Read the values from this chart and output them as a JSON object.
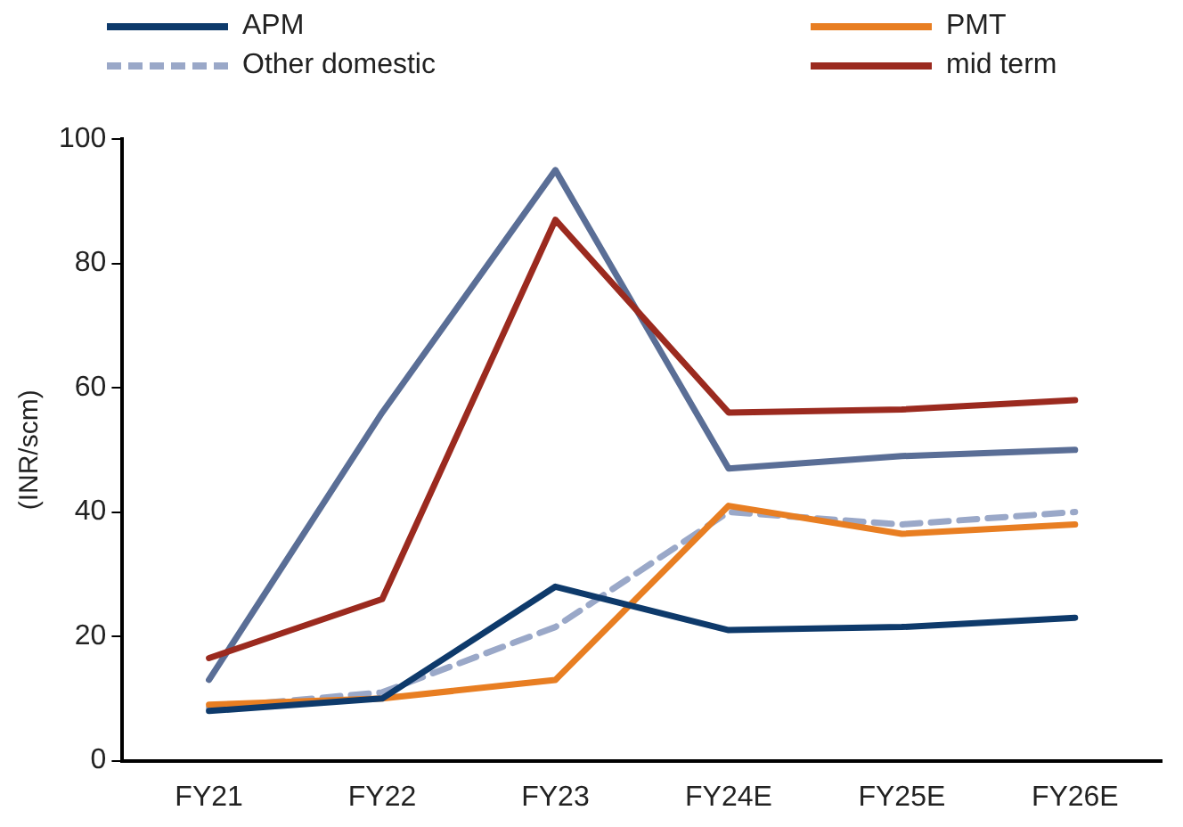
{
  "chart_data": {
    "type": "line",
    "ylabel": "(INR/scm)",
    "categories": [
      "FY21",
      "FY22",
      "FY23",
      "FY24E",
      "FY25E",
      "FY26E"
    ],
    "ylim": [
      0,
      100
    ],
    "yticks": [
      0,
      20,
      40,
      60,
      80,
      100
    ],
    "grid": false,
    "legend": "top",
    "marker": "none",
    "series": [
      {
        "name": "APM",
        "color": "#0e3a6b",
        "values": [
          8,
          10,
          28,
          21,
          21.5,
          23
        ]
      },
      {
        "name": "PMT",
        "color": "#e87e22",
        "values": [
          9,
          10,
          13,
          41,
          36.5,
          38
        ]
      },
      {
        "name": "Other domestic",
        "color": "#9aa8c8",
        "line_style": "dashed",
        "values": [
          8.5,
          11,
          21.5,
          40,
          38,
          40
        ]
      },
      {
        "name": "mid term",
        "color": "#9b2a1f",
        "values": [
          16.5,
          26,
          87,
          56,
          56.5,
          58
        ]
      },
      {
        "color": "#5a6e96",
        "values": [
          13,
          56,
          95,
          47,
          49,
          50
        ]
      }
    ]
  }
}
